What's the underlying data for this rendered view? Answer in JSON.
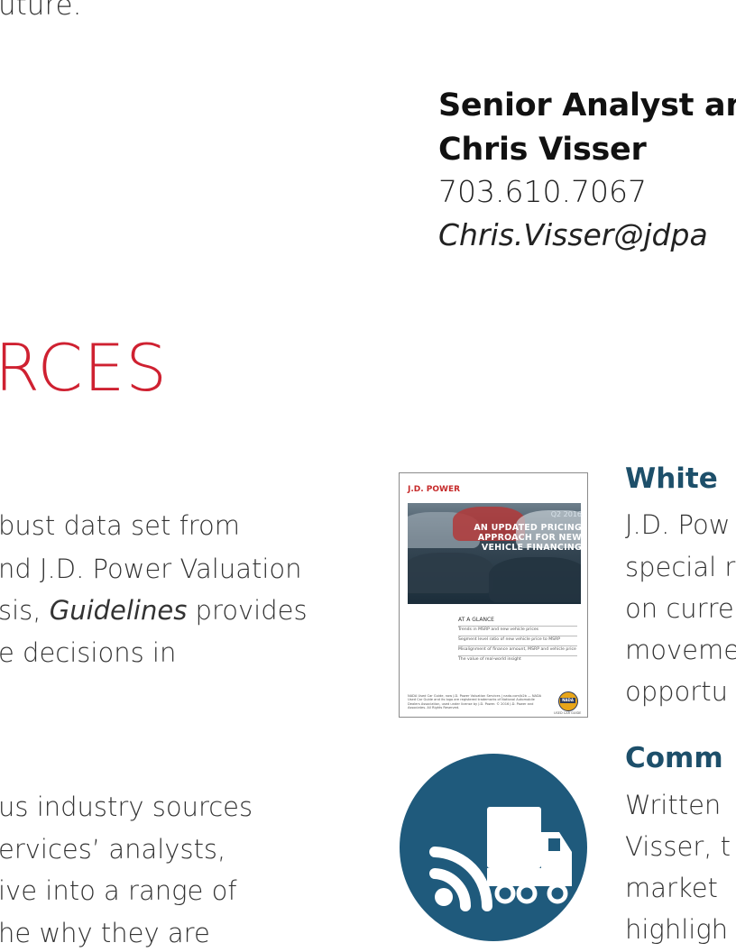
{
  "intro": {
    "text": "uture."
  },
  "contact": {
    "role": "Senior Analyst an",
    "name": "Chris Visser",
    "phone": "703.610.7067",
    "email": "Chris.Visser@jdpa"
  },
  "section": {
    "heading": "RCES"
  },
  "left_column": {
    "paragraph_1": {
      "line_1": "bust data set from",
      "line_2": "nd J.D. Power Valuation",
      "line_3_prefix": "sis, ",
      "line_3_italic": "Guidelines",
      "line_3_suffix": " provides",
      "line_4": "e decisions in"
    },
    "paragraph_2": {
      "line_1": "us industry sources",
      "line_2": "ervices’ analysts,",
      "line_3": "ive into a range of",
      "line_4": "he why they are"
    }
  },
  "resources": {
    "white_paper": {
      "title": "White",
      "lines": [
        "J.D. Pow",
        "special r",
        "on curre",
        "moveme",
        "opportu"
      ],
      "icon": "document-cover-icon",
      "cover": {
        "brand": "J.D. POWER",
        "quarter": "Q2 2016",
        "headline": "AN UPDATED PRICING APPROACH FOR NEW VEHICLE FINANCING",
        "glance_title": "AT A GLANCE",
        "glance_items": [
          "Trends in MSRP and new vehicle prices",
          "Segment level ratio of new vehicle price to MSRP",
          "Misalignment of finance amount, MSRP and vehicle price",
          "The value of real-world insight"
        ],
        "footer_note": "NADA Used Car Guide, now J.D. Power Valuation Services | nada.com/b2b — NADA Used Car Guide and its logo are registered trademarks of National Automobile Dealers Association, used under license by J.D. Power. © 2016 J.D. Power and Associates. All Rights Reserved.",
        "badge_label": "NADA",
        "badge_sub": "USED CAR GUIDE"
      }
    },
    "commentary": {
      "title": "Comm",
      "lines": [
        "Written",
        "Visser, t",
        "market",
        "highligh"
      ],
      "icon": "rss-truck-icon"
    }
  },
  "colors": {
    "accent_red": "#cf2131",
    "brand_blue": "#1d4f6a",
    "icon_blue": "#1f5a7c"
  }
}
